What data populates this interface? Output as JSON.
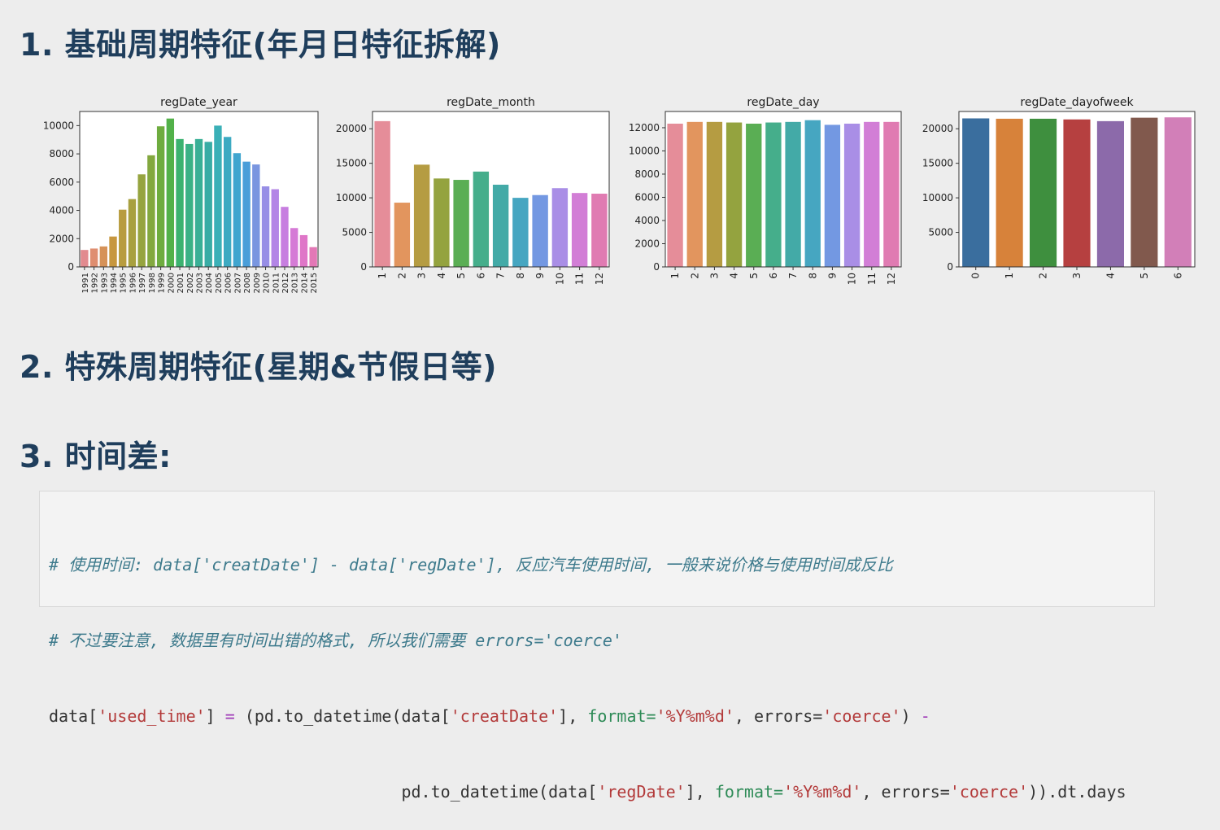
{
  "headings": {
    "h1": "1. 基础周期特征(年月日特征拆解)",
    "h2": "2. 特殊周期特征(星期&节假日等)",
    "h3": "3. 时间差:"
  },
  "chart_data": [
    {
      "type": "bar",
      "title": "regDate_year",
      "categories": [
        "1991",
        "1992",
        "1993",
        "1994",
        "1995",
        "1996",
        "1997",
        "1998",
        "1999",
        "2000",
        "2001",
        "2002",
        "2003",
        "2004",
        "2005",
        "2006",
        "2007",
        "2008",
        "2009",
        "2010",
        "2011",
        "2012",
        "2013",
        "2014",
        "2015"
      ],
      "values": [
        1200,
        1300,
        1450,
        2150,
        4050,
        4800,
        6550,
        7900,
        9950,
        10500,
        9050,
        8700,
        9050,
        8850,
        10000,
        9200,
        8050,
        7450,
        7250,
        5700,
        5500,
        4250,
        2750,
        2250,
        1400
      ],
      "yticks": [
        0,
        2000,
        4000,
        6000,
        8000,
        10000
      ],
      "ylim": [
        0,
        11000
      ],
      "tick_rotation": 90,
      "colors": [
        "#e28a8f",
        "#df8e70",
        "#d69258",
        "#c7973f",
        "#b89c3f",
        "#a8a03f",
        "#96a43f",
        "#83a83f",
        "#6eac3f",
        "#52b149",
        "#3bb270",
        "#3ab186",
        "#39af96",
        "#38aca5",
        "#3ab0b7",
        "#3caac2",
        "#3fa5cf",
        "#4a9ed9",
        "#7996e0",
        "#978ee6",
        "#b385e6",
        "#c77ee0",
        "#d57ad6",
        "#df76c8",
        "#e378b6"
      ]
    },
    {
      "type": "bar",
      "title": "regDate_month",
      "categories": [
        "1",
        "2",
        "3",
        "4",
        "5",
        "6",
        "7",
        "8",
        "9",
        "10",
        "11",
        "12"
      ],
      "values": [
        21100,
        9300,
        14800,
        12800,
        12600,
        13800,
        11900,
        10000,
        10400,
        11400,
        10700,
        10600
      ],
      "yticks": [
        0,
        5000,
        10000,
        15000,
        20000
      ],
      "ylim": [
        0,
        22500
      ],
      "tick_rotation": 90,
      "colors": [
        "#e58d99",
        "#e2955e",
        "#b59c42",
        "#94a33f",
        "#5aae54",
        "#45ae8b",
        "#43aaa7",
        "#46a6c1",
        "#7398e2",
        "#a98ee6",
        "#d27ed6",
        "#e07bb2"
      ]
    },
    {
      "type": "bar",
      "title": "regDate_day",
      "categories": [
        "1",
        "2",
        "3",
        "4",
        "5",
        "6",
        "7",
        "8",
        "9",
        "10",
        "11",
        "12"
      ],
      "values": [
        12350,
        12500,
        12500,
        12450,
        12350,
        12450,
        12500,
        12650,
        12250,
        12350,
        12500,
        12500
      ],
      "yticks": [
        0,
        2000,
        4000,
        6000,
        8000,
        10000,
        12000
      ],
      "ylim": [
        0,
        13400
      ],
      "tick_rotation": 90,
      "colors": [
        "#e58d99",
        "#e2955e",
        "#b59c42",
        "#94a33f",
        "#5aae54",
        "#45ae8b",
        "#43aaa7",
        "#46a6c1",
        "#7398e2",
        "#a98ee6",
        "#d27ed6",
        "#e07bb2"
      ]
    },
    {
      "type": "bar",
      "title": "regDate_dayofweek",
      "categories": [
        "0",
        "1",
        "2",
        "3",
        "4",
        "5",
        "6"
      ],
      "values": [
        21500,
        21450,
        21450,
        21350,
        21100,
        21600,
        21650
      ],
      "yticks": [
        0,
        5000,
        10000,
        15000,
        20000
      ],
      "ylim": [
        0,
        22500
      ],
      "tick_rotation": 90,
      "colors": [
        "#3a6e9e",
        "#d7823a",
        "#3e8f3e",
        "#b64040",
        "#8c6aaa",
        "#81594d",
        "#d27fb8"
      ]
    }
  ],
  "code": {
    "comment1": "# 使用时间: data['creatDate'] - data['regDate'], 反应汽车使用时间, 一般来说价格与使用时间成反比",
    "comment2": "# 不过要注意, 数据里有时间出错的格式, 所以我们需要 errors='coerce'",
    "l3_a": "data[",
    "l3_str1": "'used_time'",
    "l3_b": "] ",
    "l3_eq": "=",
    "l3_c": " (pd.to_datetime(data[",
    "l3_str2": "'creatDate'",
    "l3_d": "], ",
    "l3_kw1": "format=",
    "l3_str3": "'%Y%m%d'",
    "l3_e": ", errors=",
    "l3_str4": "'coerce'",
    "l3_f": ") ",
    "l3_minus": "-",
    "l4_indent": "                                   ",
    "l4_a": " pd.to_datetime(data[",
    "l4_str1": "'regDate'",
    "l4_b": "], ",
    "l4_kw1": "format=",
    "l4_str2": "'%Y%m%d'",
    "l4_c": ", errors=",
    "l4_str3": "'coerce'",
    "l4_d": ")).dt.days"
  }
}
